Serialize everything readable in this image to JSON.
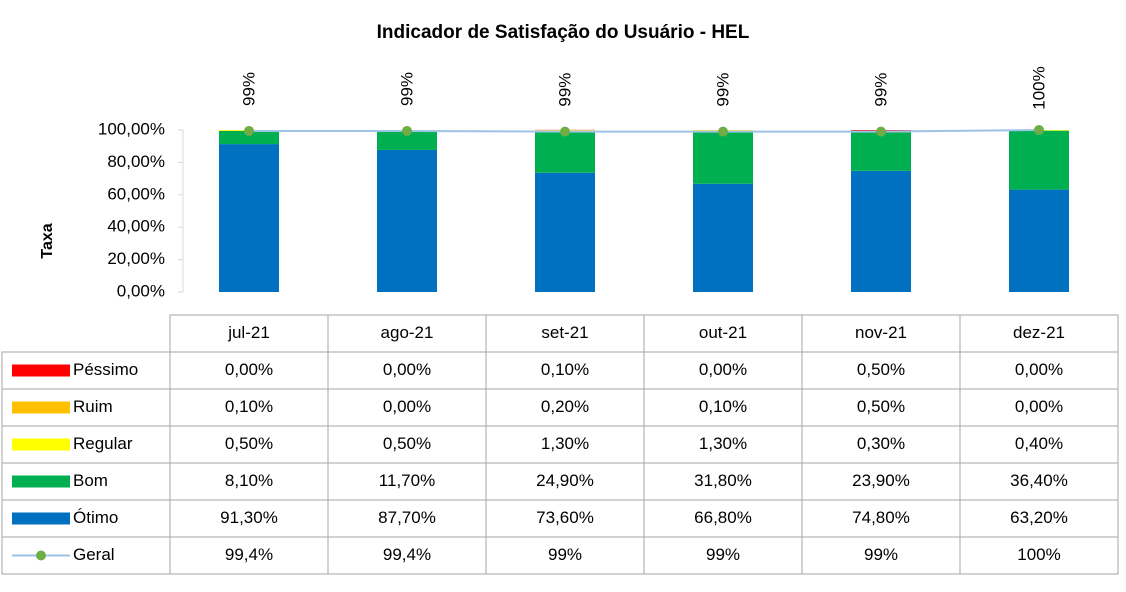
{
  "chart_data": {
    "type": "bar",
    "stacked": true,
    "title": "Indicador de Satisfação do Usuário - HEL",
    "y_label": "Taxa",
    "categories": [
      "jul-21",
      "ago-21",
      "set-21",
      "out-21",
      "nov-21",
      "dez-21"
    ],
    "ylim": [
      0,
      100
    ],
    "yticks": [
      {
        "value": 0,
        "label": "0,00%"
      },
      {
        "value": 20,
        "label": "20,00%"
      },
      {
        "value": 40,
        "label": "40,00%"
      },
      {
        "value": 60,
        "label": "60,00%"
      },
      {
        "value": 80,
        "label": "80,00%"
      },
      {
        "value": 100,
        "label": "100,00%"
      }
    ],
    "grid": false,
    "series": [
      {
        "name": "Péssimo",
        "color": "#ff0000",
        "values": [
          0,
          0,
          0.1,
          0,
          0.5,
          0
        ],
        "value_labels": [
          "0,00%",
          "0,00%",
          "0,10%",
          "0,00%",
          "0,50%",
          "0,00%"
        ]
      },
      {
        "name": "Ruim",
        "color": "#ffc000",
        "values": [
          0.1,
          0,
          0.2,
          0.1,
          0.5,
          0
        ],
        "value_labels": [
          "0,10%",
          "0,00%",
          "0,20%",
          "0,10%",
          "0,50%",
          "0,00%"
        ]
      },
      {
        "name": "Regular",
        "color": "#ffff00",
        "values": [
          0.5,
          0.5,
          1.3,
          1.3,
          0.3,
          0.4
        ],
        "value_labels": [
          "0,50%",
          "0,50%",
          "1,30%",
          "1,30%",
          "0,30%",
          "0,40%"
        ]
      },
      {
        "name": "Bom",
        "color": "#00b050",
        "values": [
          8.1,
          11.7,
          24.9,
          31.8,
          23.9,
          36.4
        ],
        "value_labels": [
          "8,10%",
          "11,70%",
          "24,90%",
          "31,80%",
          "23,90%",
          "36,40%"
        ]
      },
      {
        "name": "Ótimo",
        "color": "#0070c0",
        "values": [
          91.3,
          87.7,
          73.6,
          66.8,
          74.8,
          63.2
        ],
        "value_labels": [
          "91,30%",
          "87,70%",
          "73,60%",
          "66,80%",
          "74,80%",
          "63,20%"
        ]
      },
      {
        "name": "Geral",
        "type": "line",
        "color": "#9dc3e6",
        "marker_color": "#70ad47",
        "values": [
          99.4,
          99.4,
          99,
          99,
          99,
          100
        ],
        "value_labels": [
          "99,4%",
          "99,4%",
          "99%",
          "99%",
          "99%",
          "100%"
        ],
        "point_labels": [
          "99%",
          "99%",
          "99%",
          "99%",
          "99%",
          "100%"
        ]
      }
    ]
  }
}
